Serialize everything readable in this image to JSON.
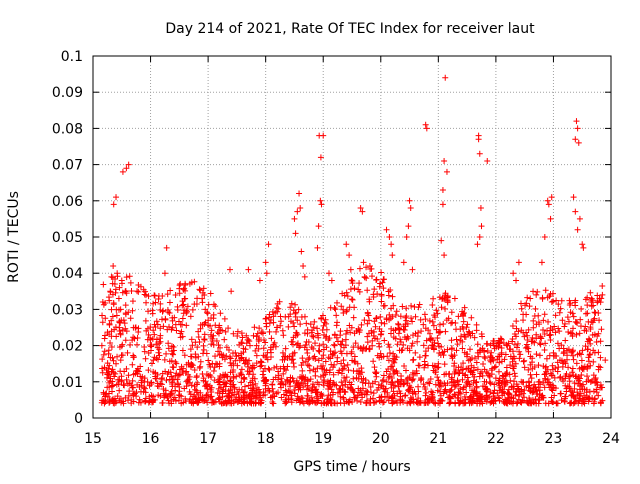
{
  "chart_data": {
    "type": "scatter",
    "title": "Day 214 of 2021, Rate Of TEC Index for receiver laut",
    "xlabel": "GPS time / hours",
    "ylabel": "ROTI / TECUs",
    "xlim": [
      15,
      24
    ],
    "ylim": [
      0,
      0.1
    ],
    "x_ticks": [
      15,
      16,
      17,
      18,
      19,
      20,
      21,
      22,
      23,
      24
    ],
    "y_ticks": [
      0,
      0.01,
      0.02,
      0.03,
      0.04,
      0.05,
      0.06,
      0.07,
      0.08,
      0.09,
      0.1
    ],
    "x_tick_labels": [
      "15",
      "16",
      "17",
      "18",
      "19",
      "20",
      "21",
      "22",
      "23",
      "24"
    ],
    "y_tick_labels": [
      "0",
      "0.01",
      "0.02",
      "0.03",
      "0.04",
      "0.05",
      "0.06",
      "0.07",
      "0.08",
      "0.09",
      "0.1"
    ],
    "grid": true,
    "marker": "+",
    "series_color": "#ff0000",
    "series": [
      {
        "name": "ROTI",
        "x": [
          15.3,
          15.32,
          15.35,
          15.38,
          15.42,
          15.45,
          15.46,
          15.48,
          15.5,
          15.36,
          15.4,
          15.52,
          15.58,
          15.62,
          16.25,
          16.28,
          16.6,
          16.62,
          16.95,
          17.0,
          17.38,
          17.4,
          17.7,
          17.9,
          18.0,
          18.02,
          18.05,
          18.5,
          18.52,
          18.55,
          18.58,
          18.6,
          18.62,
          18.65,
          18.68,
          18.9,
          18.92,
          18.95,
          18.97,
          19.0,
          18.93,
          18.96,
          19.1,
          19.15,
          19.4,
          19.45,
          19.48,
          19.65,
          19.68,
          19.7,
          19.72,
          20.1,
          20.15,
          20.18,
          20.2,
          20.4,
          20.45,
          20.48,
          20.5,
          20.52,
          20.55,
          20.78,
          20.8,
          21.05,
          21.08,
          21.1,
          21.12,
          21.15,
          21.08,
          21.1,
          21.7,
          21.72,
          21.74,
          21.68,
          21.72,
          21.85,
          21.7,
          21.75,
          22.3,
          22.35,
          22.4,
          22.8,
          22.85,
          22.9,
          22.92,
          22.95,
          22.97,
          23.35,
          23.38,
          23.4,
          23.42,
          23.44,
          23.46,
          23.5,
          23.52,
          23.38,
          23.42,
          23.8,
          23.82,
          23.85,
          15.2,
          15.25,
          15.4,
          15.6,
          15.75,
          15.9,
          16.05,
          16.15,
          16.4,
          16.55,
          16.7,
          16.85,
          17.1,
          17.2,
          17.3,
          17.55,
          17.65,
          17.8,
          17.95,
          18.1,
          18.2,
          18.3,
          18.4,
          18.75,
          18.85,
          19.05,
          19.2,
          19.3,
          19.35,
          19.55,
          19.6,
          19.8,
          19.9,
          20.0,
          20.05,
          20.3,
          20.35,
          20.6,
          20.7,
          20.9,
          21.0,
          21.25,
          21.35,
          21.45,
          21.55,
          21.6,
          21.9,
          22.0,
          22.1,
          22.2,
          22.5,
          22.6,
          22.7,
          23.0,
          23.1,
          23.2,
          23.6,
          23.7,
          23.75,
          23.9
        ],
        "y": [
          0.035,
          0.039,
          0.042,
          0.037,
          0.04,
          0.033,
          0.036,
          0.03,
          0.038,
          0.059,
          0.061,
          0.068,
          0.069,
          0.07,
          0.04,
          0.047,
          0.033,
          0.029,
          0.03,
          0.027,
          0.041,
          0.035,
          0.041,
          0.038,
          0.043,
          0.04,
          0.048,
          0.055,
          0.051,
          0.057,
          0.062,
          0.058,
          0.046,
          0.042,
          0.039,
          0.047,
          0.053,
          0.06,
          0.059,
          0.078,
          0.078,
          0.072,
          0.04,
          0.038,
          0.048,
          0.045,
          0.041,
          0.058,
          0.057,
          0.043,
          0.039,
          0.052,
          0.05,
          0.048,
          0.045,
          0.043,
          0.05,
          0.053,
          0.06,
          0.058,
          0.041,
          0.081,
          0.08,
          0.049,
          0.063,
          0.071,
          0.094,
          0.068,
          0.059,
          0.045,
          0.078,
          0.073,
          0.058,
          0.048,
          0.05,
          0.071,
          0.077,
          0.053,
          0.04,
          0.038,
          0.043,
          0.043,
          0.05,
          0.06,
          0.059,
          0.055,
          0.061,
          0.061,
          0.077,
          0.082,
          0.08,
          0.076,
          0.055,
          0.048,
          0.047,
          0.057,
          0.052,
          0.033,
          0.032,
          0.034,
          0.014,
          0.012,
          0.015,
          0.018,
          0.013,
          0.011,
          0.016,
          0.019,
          0.014,
          0.013,
          0.017,
          0.021,
          0.013,
          0.015,
          0.012,
          0.016,
          0.019,
          0.014,
          0.012,
          0.022,
          0.025,
          0.018,
          0.028,
          0.021,
          0.017,
          0.026,
          0.02,
          0.024,
          0.029,
          0.017,
          0.015,
          0.019,
          0.022,
          0.023,
          0.017,
          0.026,
          0.021,
          0.018,
          0.024,
          0.02,
          0.015,
          0.017,
          0.014,
          0.023,
          0.019,
          0.012,
          0.016,
          0.011,
          0.018,
          0.02,
          0.014,
          0.017,
          0.022,
          0.018,
          0.024,
          0.026,
          0.019,
          0.027,
          0.021,
          0.016
        ]
      }
    ],
    "dense_band": {
      "note": "dense cloud of points spanning the full time range",
      "x_range": [
        15.15,
        23.85
      ],
      "y_range": [
        0.004,
        0.036
      ]
    }
  }
}
